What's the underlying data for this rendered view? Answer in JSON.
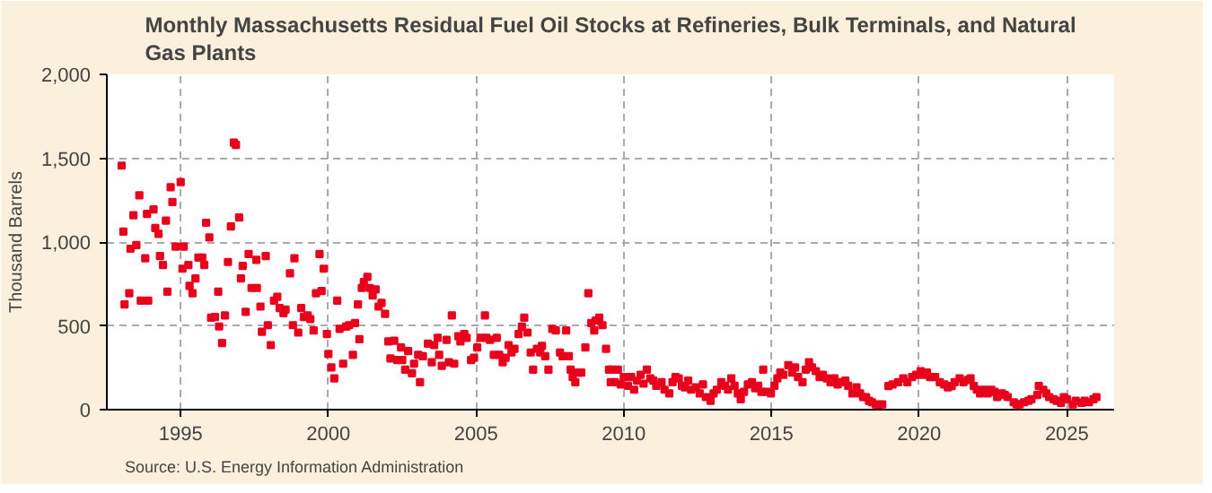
{
  "chart_data": {
    "type": "scatter",
    "title": "Monthly Massachusetts Residual Fuel Oil Stocks at Refineries, Bulk Terminals, and Natural Gas Plants",
    "ylabel": "Thousand Barrels",
    "annotations": [
      "Source: U.S. Energy Information Administration"
    ],
    "marker": "square",
    "grid": true,
    "xlim": [
      1992.5,
      2026.6
    ],
    "xticks": [
      1995,
      2000,
      2005,
      2010,
      2015,
      2020,
      2025
    ],
    "ylim": [
      0,
      2000
    ],
    "yticks": [
      {
        "value": 0,
        "label": "0"
      },
      {
        "value": 500,
        "label": "500"
      },
      {
        "value": 1000,
        "label": "1,000"
      },
      {
        "value": 1500,
        "label": "1,500"
      },
      {
        "value": 2000,
        "label": "2,000"
      }
    ],
    "series": [
      {
        "color": "#e8001c",
        "x": [
          1993.0,
          1993.06,
          1993.1,
          1993.26,
          1993.3,
          1993.4,
          1993.5,
          1993.6,
          1993.65,
          1993.8,
          1993.86,
          1993.9,
          1994.08,
          1994.14,
          1994.25,
          1994.3,
          1994.4,
          1994.5,
          1994.55,
          1994.66,
          1994.72,
          1994.83,
          1995.0,
          1995.06,
          1995.1,
          1995.26,
          1995.3,
          1995.4,
          1995.5,
          1995.6,
          1995.73,
          1995.8,
          1995.86,
          1995.97,
          1996.03,
          1996.16,
          1996.27,
          1996.3,
          1996.4,
          1996.5,
          1996.6,
          1996.7,
          1996.8,
          1996.87,
          1996.98,
          1997.04,
          1997.1,
          1997.2,
          1997.3,
          1997.4,
          1997.56,
          1997.58,
          1997.7,
          1997.75,
          1997.88,
          1997.95,
          1998.05,
          1998.16,
          1998.27,
          1998.35,
          1998.48,
          1998.55,
          1998.7,
          1998.8,
          1998.85,
          1998.98,
          1999.08,
          1999.17,
          1999.3,
          1999.39,
          1999.5,
          1999.58,
          1999.7,
          1999.77,
          1999.84,
          1999.95,
          2000.0,
          2000.1,
          2000.2,
          2000.3,
          2000.38,
          2000.5,
          2000.6,
          2000.7,
          2000.83,
          2000.9,
          2001.0,
          2001.05,
          2001.13,
          2001.2,
          2001.32,
          2001.4,
          2001.5,
          2001.6,
          2001.7,
          2001.8,
          2001.92,
          2002.03,
          2002.1,
          2002.23,
          2002.33,
          2002.46,
          2002.5,
          2002.6,
          2002.7,
          2002.83,
          2002.9,
          2003.04,
          2003.1,
          2003.2,
          2003.37,
          2003.5,
          2003.58,
          2003.7,
          2003.75,
          2003.84,
          2004.0,
          2004.08,
          2004.18,
          2004.26,
          2004.4,
          2004.47,
          2004.6,
          2004.68,
          2004.83,
          2004.93,
          2005.04,
          2005.15,
          2005.3,
          2005.35,
          2005.47,
          2005.6,
          2005.7,
          2005.78,
          2005.9,
          2006.0,
          2006.1,
          2006.2,
          2006.3,
          2006.44,
          2006.55,
          2006.63,
          2006.74,
          2006.85,
          2006.93,
          2007.06,
          2007.17,
          2007.23,
          2007.34,
          2007.45,
          2007.58,
          2007.7,
          2007.84,
          2007.93,
          2008.05,
          2008.14,
          2008.2,
          2008.27,
          2008.36,
          2008.46,
          2008.56,
          2008.7,
          2008.8,
          2008.9,
          2009.0,
          2009.05,
          2009.17,
          2009.28,
          2009.4,
          2009.5,
          2009.56,
          2009.6,
          2009.7,
          2009.8,
          2009.9,
          2010.0,
          2010.14,
          2010.25,
          2010.35,
          2010.45,
          2010.57,
          2010.67,
          2010.78,
          2010.9,
          2011.0,
          2011.1,
          2011.28,
          2011.38,
          2011.54,
          2011.65,
          2011.75,
          2011.86,
          2011.97,
          2012.07,
          2012.18,
          2012.28,
          2012.44,
          2012.57,
          2012.68,
          2012.78,
          2012.94,
          2013.04,
          2013.15,
          2013.3,
          2013.43,
          2013.53,
          2013.64,
          2013.75,
          2013.86,
          2013.96,
          2014.07,
          2014.2,
          2014.34,
          2014.45,
          2014.55,
          2014.66,
          2014.72,
          2014.83,
          2014.98,
          2015.1,
          2015.2,
          2015.3,
          2015.4,
          2015.57,
          2015.7,
          2015.8,
          2015.9,
          2016.05,
          2016.16,
          2016.27,
          2016.37,
          2016.5,
          2016.63,
          2016.74,
          2016.87,
          2017.0,
          2017.13,
          2017.24,
          2017.34,
          2017.5,
          2017.6,
          2017.74,
          2017.88,
          2018.0,
          2018.1,
          2018.2,
          2018.3,
          2018.4,
          2018.53,
          2018.63,
          2018.75,
          2018.96,
          2019.1,
          2019.29,
          2019.46,
          2019.6,
          2019.76,
          2019.9,
          2020.05,
          2020.15,
          2020.26,
          2020.37,
          2020.54,
          2020.7,
          2020.85,
          2020.97,
          2021.1,
          2021.2,
          2021.37,
          2021.5,
          2021.65,
          2021.74,
          2021.85,
          2021.95,
          2022.06,
          2022.2,
          2022.32,
          2022.44,
          2022.55,
          2022.64,
          2022.8,
          2022.9,
          2023.0,
          2023.2,
          2023.3,
          2023.4,
          2023.55,
          2023.7,
          2023.8,
          2024.0,
          2024.05,
          2024.2,
          2024.3,
          2024.4,
          2024.55,
          2024.65,
          2024.8,
          2024.9,
          2025.0,
          2025.2,
          2025.3,
          2025.5,
          2025.6,
          2025.75,
          2025.9,
          2026.0
        ],
        "values": [
          1456,
          1062,
          628,
          695,
          960,
          1160,
          982,
          1279,
          650,
          903,
          1168,
          650,
          1195,
          1084,
          1049,
          916,
          863,
          1128,
          704,
          1327,
          1239,
          973,
          1358,
          841,
          973,
          863,
          739,
          695,
          783,
          907,
          907,
          863,
          1115,
          1027,
          549,
          553,
          704,
          496,
          398,
          562,
          881,
          1093,
          1593,
          1580,
          1146,
          783,
          858,
          584,
          929,
          726,
          894,
          726,
          615,
          465,
          916,
          504,
          385,
          650,
          673,
          606,
          575,
          597,
          814,
          504,
          903,
          460,
          606,
          553,
          562,
          540,
          473,
          695,
          929,
          708,
          841,
          451,
          332,
          252,
          186,
          650,
          482,
          274,
          495,
          504,
          327,
          517,
          628,
          420,
          726,
          761,
          792,
          726,
          681,
          717,
          615,
          637,
          571,
          407,
          305,
          411,
          296,
          371,
          296,
          239,
          350,
          217,
          274,
          327,
          164,
          319,
          394,
          283,
          385,
          429,
          327,
          261,
          416,
          283,
          562,
          274,
          438,
          407,
          451,
          429,
          296,
          310,
          371,
          429,
          562,
          429,
          416,
          327,
          429,
          327,
          283,
          310,
          385,
          341,
          363,
          451,
          495,
          549,
          460,
          341,
          239,
          363,
          341,
          380,
          319,
          239,
          482,
          473,
          341,
          319,
          473,
          319,
          239,
          195,
          164,
          221,
          221,
          371,
          694,
          517,
          473,
          531,
          549,
          504,
          363,
          239,
          164,
          239,
          164,
          239,
          150,
          195,
          142,
          195,
          119,
          173,
          208,
          155,
          239,
          186,
          173,
          142,
          164,
          119,
          97,
          164,
          195,
          186,
          142,
          133,
          173,
          119,
          133,
          97,
          150,
          75,
          53,
          97,
          119,
          164,
          142,
          119,
          186,
          142,
          97,
          62,
          106,
          150,
          164,
          128,
          142,
          106,
          239,
          106,
          97,
          142,
          186,
          221,
          208,
          265,
          221,
          252,
          195,
          164,
          239,
          283,
          252,
          230,
          195,
          208,
          186,
          164,
          186,
          150,
          164,
          173,
          142,
          97,
          133,
          97,
          75,
          75,
          53,
          44,
          31,
          18,
          31,
          141,
          150,
          164,
          186,
          164,
          195,
          208,
          230,
          208,
          221,
          195,
          195,
          164,
          150,
          133,
          141,
          164,
          186,
          164,
          177,
          186,
          141,
          119,
          97,
          119,
          97,
          119,
          106,
          75,
          97,
          88,
          75,
          44,
          31,
          31,
          44,
          53,
          62,
          88,
          141,
          119,
          97,
          75,
          62,
          53,
          40,
          75,
          62,
          31,
          53,
          40,
          53,
          44,
          62,
          75
        ]
      }
    ]
  }
}
